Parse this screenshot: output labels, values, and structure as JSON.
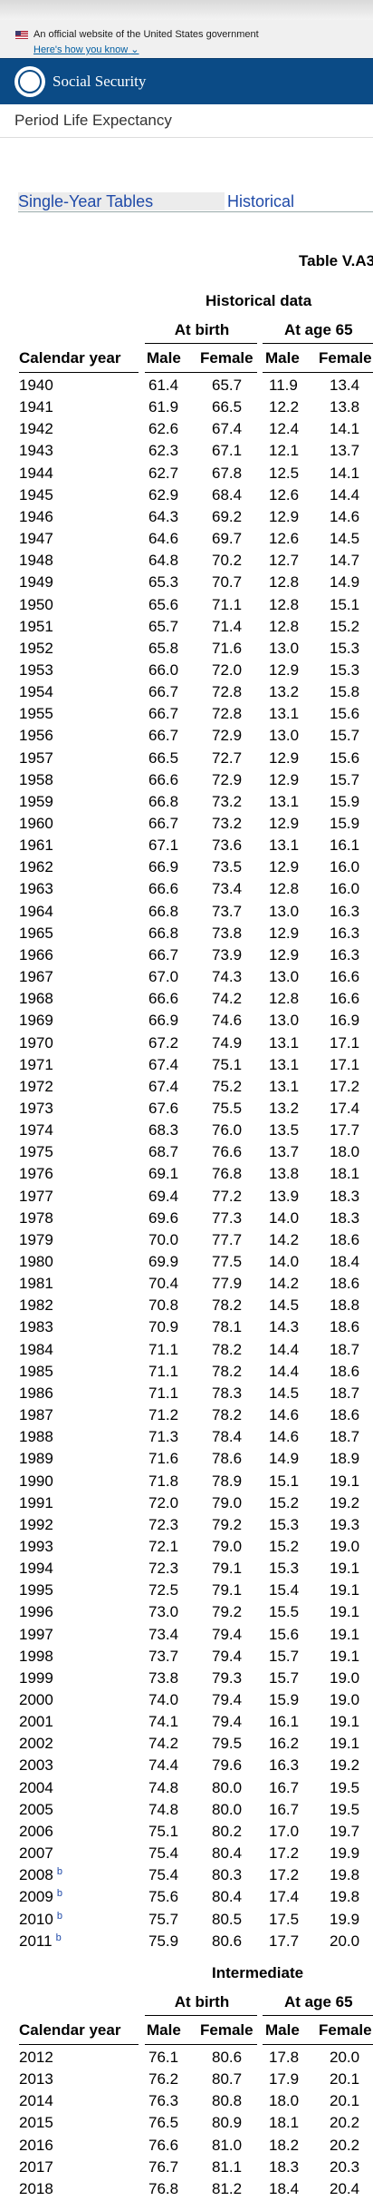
{
  "gov_banner": {
    "text": "An official website of the United States government",
    "link": "Here's how you know"
  },
  "header": {
    "agency": "Social Security"
  },
  "page_title": "Period Life Expectancy",
  "tabs": [
    "Single-Year Tables",
    "Historical"
  ],
  "table_title": "Table V.A3",
  "headers": {
    "calendar_year": "Calendar year",
    "at_birth": "At birth",
    "at_65": "At age 65",
    "male": "Male",
    "female": "Female"
  },
  "sections": [
    {
      "title": "Historical data",
      "rows": [
        {
          "year": "1940",
          "note": "",
          "v": [
            "61.4",
            "65.7",
            "11.9",
            "13.4"
          ]
        },
        {
          "year": "1941",
          "note": "",
          "v": [
            "61.9",
            "66.5",
            "12.2",
            "13.8"
          ]
        },
        {
          "year": "1942",
          "note": "",
          "v": [
            "62.6",
            "67.4",
            "12.4",
            "14.1"
          ]
        },
        {
          "year": "1943",
          "note": "",
          "v": [
            "62.3",
            "67.1",
            "12.1",
            "13.7"
          ]
        },
        {
          "year": "1944",
          "note": "",
          "v": [
            "62.7",
            "67.8",
            "12.5",
            "14.1"
          ]
        },
        {
          "year": "1945",
          "note": "",
          "v": [
            "62.9",
            "68.4",
            "12.6",
            "14.4"
          ]
        },
        {
          "year": "1946",
          "note": "",
          "v": [
            "64.3",
            "69.2",
            "12.9",
            "14.6"
          ]
        },
        {
          "year": "1947",
          "note": "",
          "v": [
            "64.6",
            "69.7",
            "12.6",
            "14.5"
          ]
        },
        {
          "year": "1948",
          "note": "",
          "v": [
            "64.8",
            "70.2",
            "12.7",
            "14.7"
          ]
        },
        {
          "year": "1949",
          "note": "",
          "v": [
            "65.3",
            "70.7",
            "12.8",
            "14.9"
          ]
        },
        {
          "year": "1950",
          "note": "",
          "v": [
            "65.6",
            "71.1",
            "12.8",
            "15.1"
          ]
        },
        {
          "year": "1951",
          "note": "",
          "v": [
            "65.7",
            "71.4",
            "12.8",
            "15.2"
          ]
        },
        {
          "year": "1952",
          "note": "",
          "v": [
            "65.8",
            "71.6",
            "13.0",
            "15.3"
          ]
        },
        {
          "year": "1953",
          "note": "",
          "v": [
            "66.0",
            "72.0",
            "12.9",
            "15.3"
          ]
        },
        {
          "year": "1954",
          "note": "",
          "v": [
            "66.7",
            "72.8",
            "13.2",
            "15.8"
          ]
        },
        {
          "year": "1955",
          "note": "",
          "v": [
            "66.7",
            "72.8",
            "13.1",
            "15.6"
          ]
        },
        {
          "year": "1956",
          "note": "",
          "v": [
            "66.7",
            "72.9",
            "13.0",
            "15.7"
          ]
        },
        {
          "year": "1957",
          "note": "",
          "v": [
            "66.5",
            "72.7",
            "12.9",
            "15.6"
          ]
        },
        {
          "year": "1958",
          "note": "",
          "v": [
            "66.6",
            "72.9",
            "12.9",
            "15.7"
          ]
        },
        {
          "year": "1959",
          "note": "",
          "v": [
            "66.8",
            "73.2",
            "13.1",
            "15.9"
          ]
        },
        {
          "year": "1960",
          "note": "",
          "v": [
            "66.7",
            "73.2",
            "12.9",
            "15.9"
          ]
        },
        {
          "year": "1961",
          "note": "",
          "v": [
            "67.1",
            "73.6",
            "13.1",
            "16.1"
          ]
        },
        {
          "year": "1962",
          "note": "",
          "v": [
            "66.9",
            "73.5",
            "12.9",
            "16.0"
          ]
        },
        {
          "year": "1963",
          "note": "",
          "v": [
            "66.6",
            "73.4",
            "12.8",
            "16.0"
          ]
        },
        {
          "year": "1964",
          "note": "",
          "v": [
            "66.8",
            "73.7",
            "13.0",
            "16.3"
          ]
        },
        {
          "year": "1965",
          "note": "",
          "v": [
            "66.8",
            "73.8",
            "12.9",
            "16.3"
          ]
        },
        {
          "year": "1966",
          "note": "",
          "v": [
            "66.7",
            "73.9",
            "12.9",
            "16.3"
          ]
        },
        {
          "year": "1967",
          "note": "",
          "v": [
            "67.0",
            "74.3",
            "13.0",
            "16.6"
          ]
        },
        {
          "year": "1968",
          "note": "",
          "v": [
            "66.6",
            "74.2",
            "12.8",
            "16.6"
          ]
        },
        {
          "year": "1969",
          "note": "",
          "v": [
            "66.9",
            "74.6",
            "13.0",
            "16.9"
          ]
        },
        {
          "year": "1970",
          "note": "",
          "v": [
            "67.2",
            "74.9",
            "13.1",
            "17.1"
          ]
        },
        {
          "year": "1971",
          "note": "",
          "v": [
            "67.4",
            "75.1",
            "13.1",
            "17.1"
          ]
        },
        {
          "year": "1972",
          "note": "",
          "v": [
            "67.4",
            "75.2",
            "13.1",
            "17.2"
          ]
        },
        {
          "year": "1973",
          "note": "",
          "v": [
            "67.6",
            "75.5",
            "13.2",
            "17.4"
          ]
        },
        {
          "year": "1974",
          "note": "",
          "v": [
            "68.3",
            "76.0",
            "13.5",
            "17.7"
          ]
        },
        {
          "year": "1975",
          "note": "",
          "v": [
            "68.7",
            "76.6",
            "13.7",
            "18.0"
          ]
        },
        {
          "year": "1976",
          "note": "",
          "v": [
            "69.1",
            "76.8",
            "13.8",
            "18.1"
          ]
        },
        {
          "year": "1977",
          "note": "",
          "v": [
            "69.4",
            "77.2",
            "13.9",
            "18.3"
          ]
        },
        {
          "year": "1978",
          "note": "",
          "v": [
            "69.6",
            "77.3",
            "14.0",
            "18.3"
          ]
        },
        {
          "year": "1979",
          "note": "",
          "v": [
            "70.0",
            "77.7",
            "14.2",
            "18.6"
          ]
        },
        {
          "year": "1980",
          "note": "",
          "v": [
            "69.9",
            "77.5",
            "14.0",
            "18.4"
          ]
        },
        {
          "year": "1981",
          "note": "",
          "v": [
            "70.4",
            "77.9",
            "14.2",
            "18.6"
          ]
        },
        {
          "year": "1982",
          "note": "",
          "v": [
            "70.8",
            "78.2",
            "14.5",
            "18.8"
          ]
        },
        {
          "year": "1983",
          "note": "",
          "v": [
            "70.9",
            "78.1",
            "14.3",
            "18.6"
          ]
        },
        {
          "year": "1984",
          "note": "",
          "v": [
            "71.1",
            "78.2",
            "14.4",
            "18.7"
          ]
        },
        {
          "year": "1985",
          "note": "",
          "v": [
            "71.1",
            "78.2",
            "14.4",
            "18.6"
          ]
        },
        {
          "year": "1986",
          "note": "",
          "v": [
            "71.1",
            "78.3",
            "14.5",
            "18.7"
          ]
        },
        {
          "year": "1987",
          "note": "",
          "v": [
            "71.2",
            "78.2",
            "14.6",
            "18.6"
          ]
        },
        {
          "year": "1988",
          "note": "",
          "v": [
            "71.3",
            "78.4",
            "14.6",
            "18.7"
          ]
        },
        {
          "year": "1989",
          "note": "",
          "v": [
            "71.6",
            "78.6",
            "14.9",
            "18.9"
          ]
        },
        {
          "year": "1990",
          "note": "",
          "v": [
            "71.8",
            "78.9",
            "15.1",
            "19.1"
          ]
        },
        {
          "year": "1991",
          "note": "",
          "v": [
            "72.0",
            "79.0",
            "15.2",
            "19.2"
          ]
        },
        {
          "year": "1992",
          "note": "",
          "v": [
            "72.3",
            "79.2",
            "15.3",
            "19.3"
          ]
        },
        {
          "year": "1993",
          "note": "",
          "v": [
            "72.1",
            "79.0",
            "15.2",
            "19.0"
          ]
        },
        {
          "year": "1994",
          "note": "",
          "v": [
            "72.3",
            "79.1",
            "15.3",
            "19.1"
          ]
        },
        {
          "year": "1995",
          "note": "",
          "v": [
            "72.5",
            "79.1",
            "15.4",
            "19.1"
          ]
        },
        {
          "year": "1996",
          "note": "",
          "v": [
            "73.0",
            "79.2",
            "15.5",
            "19.1"
          ]
        },
        {
          "year": "1997",
          "note": "",
          "v": [
            "73.4",
            "79.4",
            "15.6",
            "19.1"
          ]
        },
        {
          "year": "1998",
          "note": "",
          "v": [
            "73.7",
            "79.4",
            "15.7",
            "19.1"
          ]
        },
        {
          "year": "1999",
          "note": "",
          "v": [
            "73.8",
            "79.3",
            "15.7",
            "19.0"
          ]
        },
        {
          "year": "2000",
          "note": "",
          "v": [
            "74.0",
            "79.4",
            "15.9",
            "19.0"
          ]
        },
        {
          "year": "2001",
          "note": "",
          "v": [
            "74.1",
            "79.4",
            "16.1",
            "19.1"
          ]
        },
        {
          "year": "2002",
          "note": "",
          "v": [
            "74.2",
            "79.5",
            "16.2",
            "19.1"
          ]
        },
        {
          "year": "2003",
          "note": "",
          "v": [
            "74.4",
            "79.6",
            "16.3",
            "19.2"
          ]
        },
        {
          "year": "2004",
          "note": "",
          "v": [
            "74.8",
            "80.0",
            "16.7",
            "19.5"
          ]
        },
        {
          "year": "2005",
          "note": "",
          "v": [
            "74.8",
            "80.0",
            "16.7",
            "19.5"
          ]
        },
        {
          "year": "2006",
          "note": "",
          "v": [
            "75.1",
            "80.2",
            "17.0",
            "19.7"
          ]
        },
        {
          "year": "2007",
          "note": "",
          "v": [
            "75.4",
            "80.4",
            "17.2",
            "19.9"
          ]
        },
        {
          "year": "2008",
          "note": "b",
          "v": [
            "75.4",
            "80.3",
            "17.2",
            "19.8"
          ]
        },
        {
          "year": "2009",
          "note": "b",
          "v": [
            "75.6",
            "80.4",
            "17.4",
            "19.8"
          ]
        },
        {
          "year": "2010",
          "note": "b",
          "v": [
            "75.7",
            "80.5",
            "17.5",
            "19.9"
          ]
        },
        {
          "year": "2011",
          "note": "b",
          "v": [
            "75.9",
            "80.6",
            "17.7",
            "20.0"
          ]
        }
      ]
    },
    {
      "title": "Intermediate",
      "rows": [
        {
          "year": "2012",
          "note": "",
          "v": [
            "76.1",
            "80.6",
            "17.8",
            "20.0"
          ]
        },
        {
          "year": "2013",
          "note": "",
          "v": [
            "76.2",
            "80.7",
            "17.9",
            "20.1"
          ]
        },
        {
          "year": "2014",
          "note": "",
          "v": [
            "76.3",
            "80.8",
            "18.0",
            "20.1"
          ]
        },
        {
          "year": "2015",
          "note": "",
          "v": [
            "76.5",
            "80.9",
            "18.1",
            "20.2"
          ]
        },
        {
          "year": "2016",
          "note": "",
          "v": [
            "76.6",
            "81.0",
            "18.2",
            "20.2"
          ]
        },
        {
          "year": "2017",
          "note": "",
          "v": [
            "76.7",
            "81.1",
            "18.3",
            "20.3"
          ]
        },
        {
          "year": "2018",
          "note": "",
          "v": [
            "76.8",
            "81.2",
            "18.4",
            "20.4"
          ]
        }
      ]
    }
  ]
}
